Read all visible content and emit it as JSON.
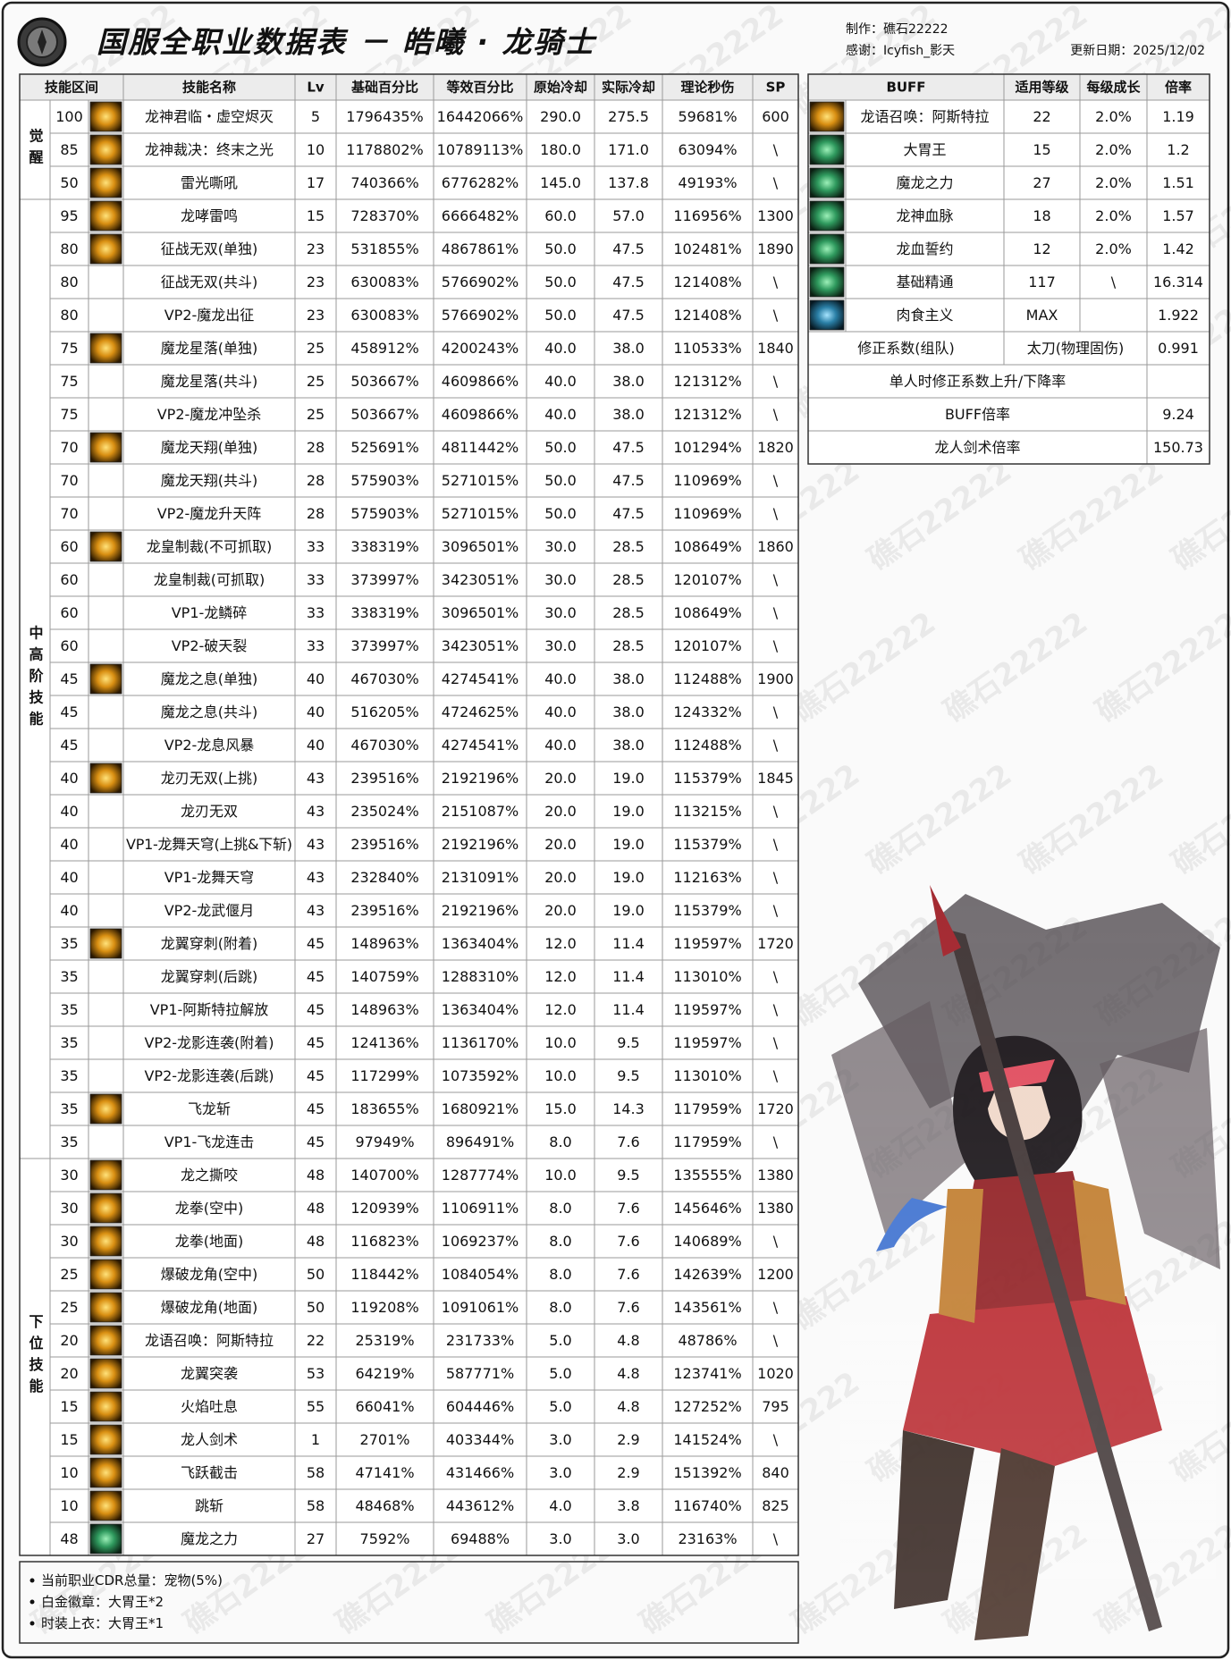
{
  "header": {
    "title": "国服全职业数据表 － 皓曦 · 龙骑士",
    "credits": [
      "制作：礁石22222",
      "感谢：Icyfish_影天"
    ],
    "date": "更新日期：2025/12/02"
  },
  "watermark": "礁石22222",
  "skill_table": {
    "columns": [
      "技能区间",
      "技能名称",
      "Lv",
      "基础百分比",
      "等效百分比",
      "原始冷却",
      "实际冷却",
      "理论秒伤",
      "SP"
    ],
    "groups": [
      {
        "label": "觉醒",
        "rows": [
          [
            "100",
            "龙神君临・虚空烬灭",
            "5",
            "1796435%",
            "16442066%",
            "290.0",
            "275.5",
            "59681%",
            "600"
          ],
          [
            "85",
            "龙神裁决：终末之光",
            "10",
            "1178802%",
            "10789113%",
            "180.0",
            "171.0",
            "63094%",
            "\\"
          ],
          [
            "50",
            "雷光嘶吼",
            "17",
            "740366%",
            "6776282%",
            "145.0",
            "137.8",
            "49193%",
            "\\"
          ]
        ]
      },
      {
        "label": "中高阶技能",
        "rows": [
          [
            "95",
            "龙哮雷鸣",
            "15",
            "728370%",
            "6666482%",
            "60.0",
            "57.0",
            "116956%",
            "1300"
          ],
          [
            "80",
            "征战无双(单独)",
            "23",
            "531855%",
            "4867861%",
            "50.0",
            "47.5",
            "102481%",
            "1890"
          ],
          [
            "80",
            "征战无双(共斗)",
            "23",
            "630083%",
            "5766902%",
            "50.0",
            "47.5",
            "121408%",
            "\\"
          ],
          [
            "80",
            "VP2-魔龙出征",
            "23",
            "630083%",
            "5766902%",
            "50.0",
            "47.5",
            "121408%",
            "\\"
          ],
          [
            "75",
            "魔龙星落(单独)",
            "25",
            "458912%",
            "4200243%",
            "40.0",
            "38.0",
            "110533%",
            "1840"
          ],
          [
            "75",
            "魔龙星落(共斗)",
            "25",
            "503667%",
            "4609866%",
            "40.0",
            "38.0",
            "121312%",
            "\\"
          ],
          [
            "75",
            "VP2-魔龙冲坠杀",
            "25",
            "503667%",
            "4609866%",
            "40.0",
            "38.0",
            "121312%",
            "\\"
          ],
          [
            "70",
            "魔龙天翔(单独)",
            "28",
            "525691%",
            "4811442%",
            "50.0",
            "47.5",
            "101294%",
            "1820"
          ],
          [
            "70",
            "魔龙天翔(共斗)",
            "28",
            "575903%",
            "5271015%",
            "50.0",
            "47.5",
            "110969%",
            "\\"
          ],
          [
            "70",
            "VP2-魔龙升天阵",
            "28",
            "575903%",
            "5271015%",
            "50.0",
            "47.5",
            "110969%",
            "\\"
          ],
          [
            "60",
            "龙皇制裁(不可抓取)",
            "33",
            "338319%",
            "3096501%",
            "30.0",
            "28.5",
            "108649%",
            "1860"
          ],
          [
            "60",
            "龙皇制裁(可抓取)",
            "33",
            "373997%",
            "3423051%",
            "30.0",
            "28.5",
            "120107%",
            "\\"
          ],
          [
            "60",
            "VP1-龙鳞碎",
            "33",
            "338319%",
            "3096501%",
            "30.0",
            "28.5",
            "108649%",
            "\\"
          ],
          [
            "60",
            "VP2-破天裂",
            "33",
            "373997%",
            "3423051%",
            "30.0",
            "28.5",
            "120107%",
            "\\"
          ],
          [
            "45",
            "魔龙之息(单独)",
            "40",
            "467030%",
            "4274541%",
            "40.0",
            "38.0",
            "112488%",
            "1900"
          ],
          [
            "45",
            "魔龙之息(共斗)",
            "40",
            "516205%",
            "4724625%",
            "40.0",
            "38.0",
            "124332%",
            "\\"
          ],
          [
            "45",
            "VP2-龙息风暴",
            "40",
            "467030%",
            "4274541%",
            "40.0",
            "38.0",
            "112488%",
            "\\"
          ],
          [
            "40",
            "龙刃无双(上挑)",
            "43",
            "239516%",
            "2192196%",
            "20.0",
            "19.0",
            "115379%",
            "1845"
          ],
          [
            "40",
            "龙刃无双",
            "43",
            "235024%",
            "2151087%",
            "20.0",
            "19.0",
            "113215%",
            "\\"
          ],
          [
            "40",
            "VP1-龙舞天穹(上挑&下斩)",
            "43",
            "239516%",
            "2192196%",
            "20.0",
            "19.0",
            "115379%",
            "\\"
          ],
          [
            "40",
            "VP1-龙舞天穹",
            "43",
            "232840%",
            "2131091%",
            "20.0",
            "19.0",
            "112163%",
            "\\"
          ],
          [
            "40",
            "VP2-龙武偃月",
            "43",
            "239516%",
            "2192196%",
            "20.0",
            "19.0",
            "115379%",
            "\\"
          ],
          [
            "35",
            "龙翼穿刺(附着)",
            "45",
            "148963%",
            "1363404%",
            "12.0",
            "11.4",
            "119597%",
            "1720"
          ],
          [
            "35",
            "龙翼穿刺(后跳)",
            "45",
            "140759%",
            "1288310%",
            "12.0",
            "11.4",
            "113010%",
            "\\"
          ],
          [
            "35",
            "VP1-阿斯特拉解放",
            "45",
            "148963%",
            "1363404%",
            "12.0",
            "11.4",
            "119597%",
            "\\"
          ],
          [
            "35",
            "VP2-龙影连袭(附着)",
            "45",
            "124136%",
            "1136170%",
            "10.0",
            "9.5",
            "119597%",
            "\\"
          ],
          [
            "35",
            "VP2-龙影连袭(后跳)",
            "45",
            "117299%",
            "1073592%",
            "10.0",
            "9.5",
            "113010%",
            "\\"
          ],
          [
            "35",
            "飞龙斩",
            "45",
            "183655%",
            "1680921%",
            "15.0",
            "14.3",
            "117959%",
            "1720"
          ],
          [
            "35",
            "VP1-飞龙连击",
            "45",
            "97949%",
            "896491%",
            "8.0",
            "7.6",
            "117959%",
            "\\"
          ]
        ]
      },
      {
        "label": "下位技能",
        "rows": [
          [
            "30",
            "龙之撕咬",
            "48",
            "140700%",
            "1287774%",
            "10.0",
            "9.5",
            "135555%",
            "1380"
          ],
          [
            "30",
            "龙拳(空中)",
            "48",
            "120939%",
            "1106911%",
            "8.0",
            "7.6",
            "145646%",
            "1380"
          ],
          [
            "30",
            "龙拳(地面)",
            "48",
            "116823%",
            "1069237%",
            "8.0",
            "7.6",
            "140689%",
            "\\"
          ],
          [
            "25",
            "爆破龙角(空中)",
            "50",
            "118442%",
            "1084054%",
            "8.0",
            "7.6",
            "142639%",
            "1200"
          ],
          [
            "25",
            "爆破龙角(地面)",
            "50",
            "119208%",
            "1091061%",
            "8.0",
            "7.6",
            "143561%",
            "\\"
          ],
          [
            "20",
            "龙语召唤：阿斯特拉",
            "22",
            "25319%",
            "231733%",
            "5.0",
            "4.8",
            "48786%",
            "\\"
          ],
          [
            "20",
            "龙翼突袭",
            "53",
            "64219%",
            "587771%",
            "5.0",
            "4.8",
            "123741%",
            "1020"
          ],
          [
            "15",
            "火焰吐息",
            "55",
            "66041%",
            "604446%",
            "5.0",
            "4.8",
            "127252%",
            "795"
          ],
          [
            "15",
            "龙人剑术",
            "1",
            "2701%",
            "403344%",
            "3.0",
            "2.9",
            "141524%",
            "\\"
          ],
          [
            "10",
            "飞跃截击",
            "58",
            "47141%",
            "431466%",
            "3.0",
            "2.9",
            "151392%",
            "840"
          ],
          [
            "10",
            "跳斩",
            "58",
            "48468%",
            "443612%",
            "4.0",
            "3.8",
            "116740%",
            "825"
          ],
          [
            "48",
            "魔龙之力",
            "27",
            "7592%",
            "69488%",
            "3.0",
            "3.0",
            "23163%",
            "\\"
          ]
        ]
      }
    ]
  },
  "buff_table": {
    "columns": [
      "BUFF",
      "适用等级",
      "每级成长",
      "倍率"
    ],
    "rows": [
      [
        "龙语召唤：阿斯特拉",
        "22",
        "2.0%",
        "1.19"
      ],
      [
        "大胃王",
        "15",
        "2.0%",
        "1.2"
      ],
      [
        "魔龙之力",
        "27",
        "2.0%",
        "1.51"
      ],
      [
        "龙神血脉",
        "18",
        "2.0%",
        "1.57"
      ],
      [
        "龙血誓约",
        "12",
        "2.0%",
        "1.42"
      ],
      [
        "基础精通",
        "117",
        "\\",
        "16.314"
      ],
      [
        "肉食主义",
        "MAX",
        null,
        "1.922"
      ]
    ],
    "summary": [
      {
        "label": "修正系数(组队)",
        "note": "太刀(物理固伤)",
        "value": "0.991"
      },
      {
        "label": "单人时修正系数上升/下降率"
      },
      {
        "label": "BUFF倍率",
        "value": "9.24"
      },
      {
        "label": "龙人剑术倍率",
        "value": "150.73"
      }
    ]
  },
  "notes": [
    "当前职业CDR总量：宠物(5%)",
    "白金徽章：大胃王*2",
    "时装上衣：大胃王*1"
  ]
}
